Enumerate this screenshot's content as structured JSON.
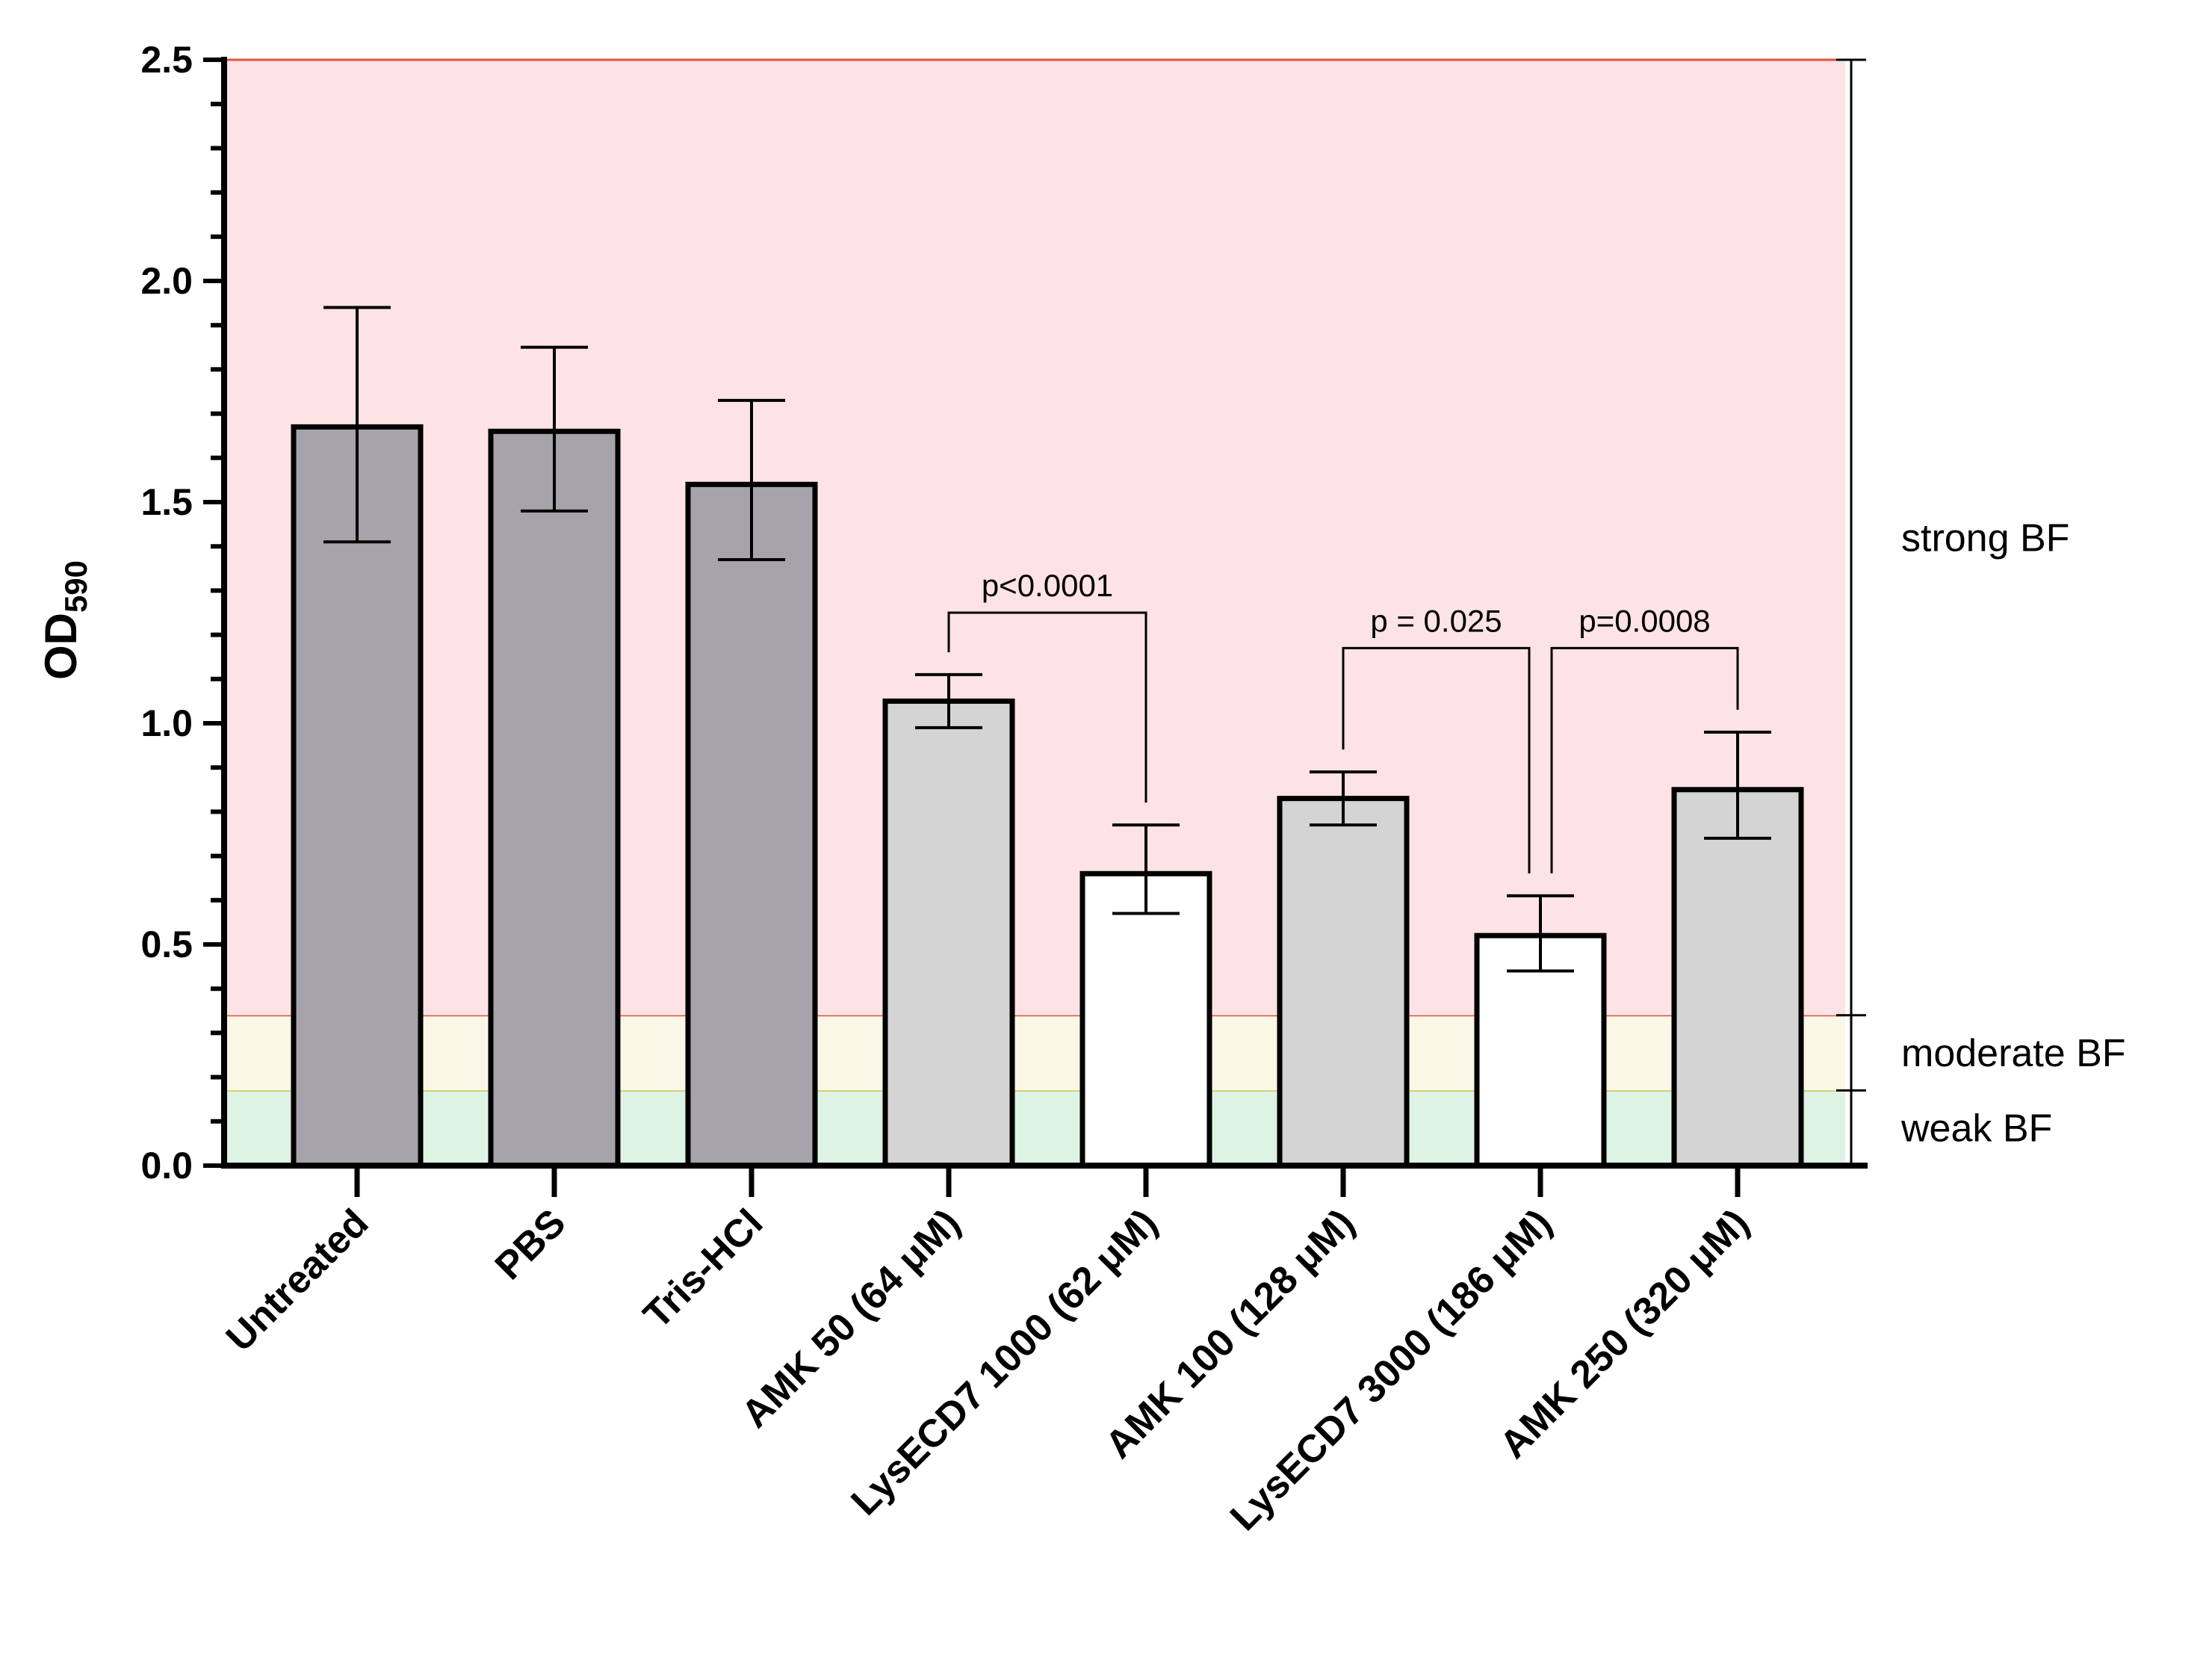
{
  "chart_data": {
    "type": "bar",
    "ylabel": "OD",
    "ylabel_subscript": "590",
    "ylim": [
      0,
      2.5
    ],
    "yticks": [
      "0.0",
      "0.5",
      "1.0",
      "1.5",
      "2.0",
      "2.5"
    ],
    "categories": [
      "Untreated",
      "PBS",
      "Tris-HCl",
      "AMK 50 (64 μM)",
      "LysECD7 1000 (62 μM)",
      "AMK 100 (128 μM)",
      "LysECD7 3000 (186 μM)",
      "AMK 250 (320 μM)"
    ],
    "values": [
      1.67,
      1.66,
      1.54,
      1.05,
      0.66,
      0.83,
      0.52,
      0.85
    ],
    "error_low": [
      1.41,
      1.48,
      1.37,
      0.99,
      0.57,
      0.77,
      0.44,
      0.74
    ],
    "error_high": [
      1.94,
      1.85,
      1.73,
      1.11,
      0.77,
      0.89,
      0.61,
      0.98
    ],
    "bar_colors": [
      "#a6a3aa",
      "#a6a3aa",
      "#a6a3aa",
      "#d4d4d4",
      "#ffffff",
      "#d4d4d4",
      "#ffffff",
      "#d4d4d4"
    ],
    "zones": [
      {
        "label": "weak BF",
        "from": 0.0,
        "to": 0.17,
        "color": "#ddf3e4",
        "line_color": "#c8c84a"
      },
      {
        "label": "moderate BF",
        "from": 0.17,
        "to": 0.34,
        "color": "#fbf7e6",
        "line_color": "#e0503c"
      },
      {
        "label": "strong BF",
        "from": 0.34,
        "to": 2.5,
        "color": "#fde3e5",
        "line_color": "#e0503c"
      }
    ],
    "comparisons": [
      {
        "from": 3,
        "to": 4,
        "label": "p<0.0001",
        "height": 1.25
      },
      {
        "from": 5,
        "to": 6,
        "label": "p = 0.025",
        "height": 1.17
      },
      {
        "from": 6,
        "to": 7,
        "label": "p=0.0008",
        "height": 1.17
      }
    ]
  }
}
